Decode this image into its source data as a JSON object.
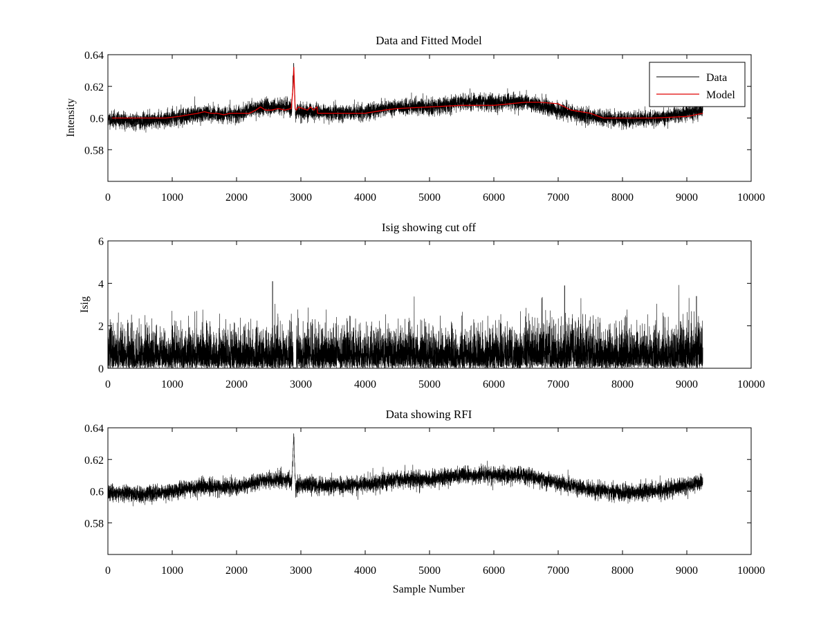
{
  "figure": {
    "background": "#ffffff",
    "data_color": "#000000",
    "model_color": "#e00000"
  },
  "chart_data": [
    {
      "type": "line",
      "title": "Data and Fitted Model",
      "xlabel": "",
      "ylabel": "Intensity",
      "xlim": [
        0,
        10000
      ],
      "ylim": [
        0.56,
        0.64
      ],
      "xticks": [
        0,
        1000,
        2000,
        3000,
        4000,
        5000,
        6000,
        7000,
        8000,
        9000,
        10000
      ],
      "xtick_labels": [
        "0",
        "1000",
        "2000",
        "3000",
        "4000",
        "5000",
        "6000",
        "7000",
        "8000",
        "9000",
        "10000"
      ],
      "yticks": [
        0.58,
        0.6,
        0.62,
        0.64
      ],
      "ytick_labels": [
        "0.58",
        "0.6",
        "0.62",
        "0.64"
      ],
      "legend": {
        "placement": "top-right",
        "entries": [
          "Data",
          "Model"
        ]
      },
      "series": [
        {
          "name": "Data",
          "kind": "noise",
          "n_samples": 9250,
          "noise_amplitude": 0.0045,
          "seed": 11,
          "baseline": {
            "x": [
              0,
              500,
              1000,
              1500,
              2000,
              2300,
              2500,
              2800,
              3000,
              3500,
              4000,
              4500,
              5000,
              5500,
              6000,
              6500,
              7000,
              7500,
              8000,
              8500,
              9000,
              9250
            ],
            "y": [
              0.599,
              0.598,
              0.6,
              0.603,
              0.602,
              0.606,
              0.607,
              0.607,
              0.604,
              0.603,
              0.604,
              0.607,
              0.607,
              0.61,
              0.61,
              0.61,
              0.605,
              0.601,
              0.599,
              0.6,
              0.603,
              0.606
            ]
          },
          "spike": {
            "x": [
              2860,
              2880,
              2890,
              2900,
              2910,
              2920,
              2935
            ],
            "y": [
              0.608,
              0.625,
              0.635,
              0.62,
              0.61,
              0.6,
              0.604
            ]
          }
        },
        {
          "name": "Model",
          "x": [
            0,
            400,
            900,
            1100,
            1400,
            1500,
            1600,
            1700,
            1800,
            1900,
            2000,
            2100,
            2200,
            2300,
            2370,
            2450,
            2550,
            2650,
            2750,
            2850,
            2880,
            2890,
            2900,
            2910,
            2930,
            2960,
            3100,
            3150,
            3200,
            3220,
            3250,
            3260,
            3500,
            4000,
            4300,
            4500,
            5000,
            5500,
            6000,
            6500,
            6700,
            7000,
            7200,
            7500,
            7700,
            8000,
            8500,
            9000,
            9250
          ],
          "y": [
            0.6,
            0.6,
            0.6,
            0.601,
            0.603,
            0.604,
            0.603,
            0.603,
            0.602,
            0.603,
            0.603,
            0.603,
            0.603,
            0.605,
            0.607,
            0.605,
            0.605,
            0.606,
            0.605,
            0.606,
            0.62,
            0.632,
            0.62,
            0.606,
            0.605,
            0.607,
            0.605,
            0.607,
            0.605,
            0.606,
            0.607,
            0.603,
            0.603,
            0.603,
            0.605,
            0.606,
            0.607,
            0.608,
            0.608,
            0.61,
            0.61,
            0.609,
            0.605,
            0.603,
            0.6,
            0.6,
            0.6,
            0.601,
            0.603
          ]
        }
      ]
    },
    {
      "type": "line",
      "title": "Isig showing cut off",
      "xlabel": "",
      "ylabel": "Isig",
      "xlim": [
        0,
        10000
      ],
      "ylim": [
        0,
        6
      ],
      "xticks": [
        0,
        1000,
        2000,
        3000,
        4000,
        5000,
        6000,
        7000,
        8000,
        9000,
        10000
      ],
      "xtick_labels": [
        "0",
        "1000",
        "2000",
        "3000",
        "4000",
        "5000",
        "6000",
        "7000",
        "8000",
        "9000",
        "10000"
      ],
      "yticks": [
        0,
        2,
        4,
        6
      ],
      "ytick_labels": [
        "0",
        "2",
        "4",
        "6"
      ],
      "series": [
        {
          "name": "Isig",
          "kind": "abs-noise",
          "n_samples": 9250,
          "scale": 0.85,
          "seed": 23,
          "peaks": {
            "x": [
              2560,
              7100,
              9150
            ],
            "y": [
              4.1,
              3.9,
              3.4
            ]
          }
        }
      ]
    },
    {
      "type": "line",
      "title": "Data showing RFI",
      "xlabel": "Sample Number",
      "ylabel": "",
      "xlim": [
        0,
        10000
      ],
      "ylim": [
        0.56,
        0.64
      ],
      "xticks": [
        0,
        1000,
        2000,
        3000,
        4000,
        5000,
        6000,
        7000,
        8000,
        9000,
        10000
      ],
      "xtick_labels": [
        "0",
        "1000",
        "2000",
        "3000",
        "4000",
        "5000",
        "6000",
        "7000",
        "8000",
        "9000",
        "10000"
      ],
      "yticks": [
        0.58,
        0.6,
        0.62,
        0.64
      ],
      "ytick_labels": [
        "0.58",
        "0.6",
        "0.62",
        "0.64"
      ],
      "series": [
        {
          "name": "Data",
          "kind": "noise",
          "n_samples": 9250,
          "noise_amplitude": 0.0045,
          "seed": 37,
          "baseline": {
            "x": [
              0,
              500,
              1000,
              1500,
              2000,
              2300,
              2500,
              2800,
              3000,
              3500,
              4000,
              4500,
              5000,
              5500,
              6000,
              6500,
              7000,
              7500,
              8000,
              8500,
              9000,
              9250
            ],
            "y": [
              0.599,
              0.598,
              0.6,
              0.603,
              0.602,
              0.606,
              0.607,
              0.607,
              0.604,
              0.603,
              0.604,
              0.607,
              0.607,
              0.61,
              0.61,
              0.61,
              0.605,
              0.601,
              0.599,
              0.6,
              0.603,
              0.606
            ]
          },
          "spike": {
            "x": [
              2860,
              2880,
              2890,
              2900,
              2910,
              2920,
              2935
            ],
            "y": [
              0.608,
              0.625,
              0.635,
              0.62,
              0.61,
              0.6,
              0.604
            ]
          }
        }
      ]
    }
  ]
}
